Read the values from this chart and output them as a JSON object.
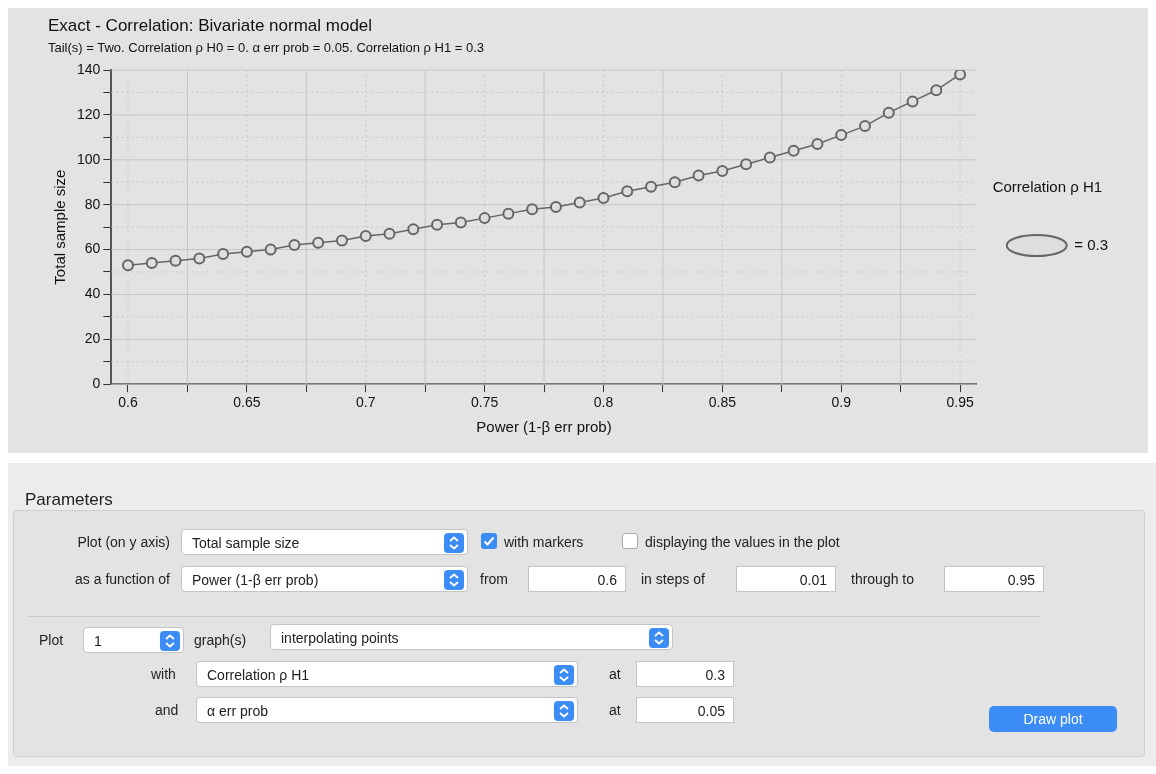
{
  "chart_data": {
    "type": "line",
    "title": "Exact - Correlation: Bivariate normal model",
    "subtitle": "Tail(s) = Two. Correlation ρ H0 = 0. α err prob = 0.05. Correlation ρ H1 = 0.3",
    "xlabel": "Power (1-β err prob)",
    "ylabel": "Total sample size",
    "legend_title": "Correlation ρ H1",
    "x": [
      0.6,
      0.61,
      0.62,
      0.63,
      0.64,
      0.65,
      0.66,
      0.67,
      0.68,
      0.69,
      0.7,
      0.71,
      0.72,
      0.73,
      0.74,
      0.75,
      0.76,
      0.77,
      0.78,
      0.79,
      0.8,
      0.81,
      0.82,
      0.83,
      0.84,
      0.85,
      0.86,
      0.87,
      0.88,
      0.89,
      0.9,
      0.91,
      0.92,
      0.93,
      0.94,
      0.95
    ],
    "series": [
      {
        "name": "= 0.3",
        "color": "#666666",
        "values": [
          53,
          54,
          55,
          56,
          58,
          59,
          60,
          62,
          63,
          64,
          66,
          67,
          69,
          71,
          72,
          74,
          76,
          78,
          79,
          81,
          83,
          86,
          88,
          90,
          93,
          95,
          98,
          101,
          104,
          107,
          111,
          115,
          121,
          126,
          131,
          138
        ]
      }
    ],
    "xlim": [
      0.593,
      0.957
    ],
    "xticks": [
      0.6,
      {
        "value": 0.625,
        "label": null
      },
      0.65,
      {
        "value": 0.675,
        "label": null
      },
      0.7,
      {
        "value": 0.725,
        "label": null
      },
      0.75,
      {
        "value": 0.775,
        "label": null
      },
      0.8,
      {
        "value": 0.825,
        "label": null
      },
      0.85,
      {
        "value": 0.875,
        "label": null
      },
      0.9,
      {
        "value": 0.925,
        "label": null
      },
      0.95
    ],
    "ylim": [
      0,
      140
    ],
    "yticks": [
      0,
      {
        "value": 10,
        "label": null
      },
      20,
      {
        "value": 30,
        "label": null
      },
      40,
      {
        "value": 50,
        "label": null
      },
      60,
      {
        "value": 70,
        "label": null
      },
      80,
      {
        "value": 90,
        "label": null
      },
      100,
      {
        "value": 110,
        "label": null
      },
      120,
      {
        "value": 130,
        "label": null
      },
      140
    ],
    "grid": true,
    "legend": "right",
    "marker": "circle",
    "annotations": [
      "Parameters",
      "Plot (on y axis)",
      "Total sample size",
      "with markers",
      "displaying the values in the plot",
      "as a function of",
      "Power (1-β err prob)",
      "from",
      "0.6",
      "in steps of",
      "0.01",
      "through to",
      "0.95",
      "Plot",
      "1",
      "graph(s)",
      "interpolating points",
      "with",
      "Correlation ρ H1",
      "at",
      "0.3",
      "and",
      "α err prob",
      "at",
      "0.05",
      "Draw plot"
    ]
  }
}
